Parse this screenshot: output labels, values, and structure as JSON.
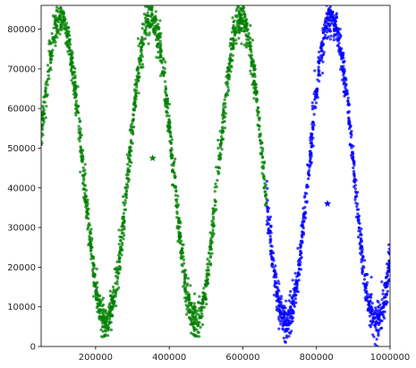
{
  "chart_data": {
    "type": "scatter",
    "title": "",
    "xlabel": "",
    "ylabel": "",
    "xlim": [
      52000,
      1000000
    ],
    "ylim": [
      0,
      86000
    ],
    "xticks": [
      200000,
      400000,
      600000,
      800000,
      1000000
    ],
    "xtick_labels": [
      "200000",
      "400000",
      "600000",
      "800000",
      "1000000"
    ],
    "yticks": [
      0,
      10000,
      20000,
      30000,
      40000,
      50000,
      60000,
      70000,
      80000
    ],
    "ytick_labels": [
      "0",
      "10000",
      "20000",
      "30000",
      "40000",
      "50000",
      "60000",
      "70000",
      "80000"
    ],
    "grid": false,
    "legend": "none",
    "series": [
      {
        "color": "#008000",
        "x_range": [
          52000,
          665000
        ],
        "pattern": "dense noisy sinusoid",
        "wave": {
          "period": 245000,
          "center": 44500,
          "amplitude": 38500,
          "peaks_at_x": [
            105000,
            350000,
            595000
          ],
          "troughs_at_x": [
            227000,
            472000
          ]
        },
        "centroid": {
          "x": 355000,
          "y": 47500
        }
      },
      {
        "color": "#0000ff",
        "x_range": [
          665000,
          1000000
        ],
        "pattern": "dense noisy sinusoid",
        "wave": {
          "period": 245000,
          "center": 44500,
          "amplitude": 38500,
          "peaks_at_x": [
            840000
          ],
          "troughs_at_x": [
            717000,
            962000
          ]
        },
        "centroid": {
          "x": 830000,
          "y": 36000
        }
      }
    ]
  }
}
